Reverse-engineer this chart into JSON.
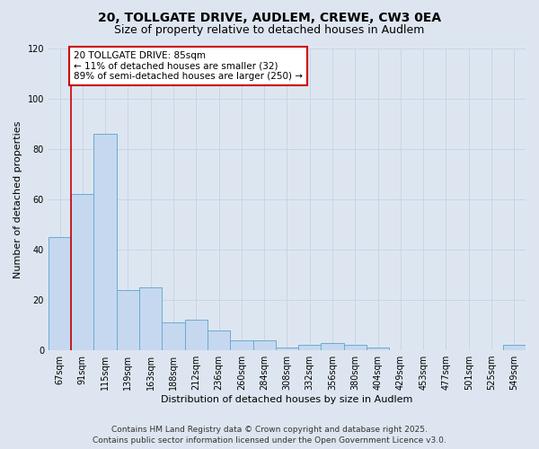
{
  "title_line1": "20, TOLLGATE DRIVE, AUDLEM, CREWE, CW3 0EA",
  "title_line2": "Size of property relative to detached houses in Audlem",
  "xlabel": "Distribution of detached houses by size in Audlem",
  "ylabel": "Number of detached properties",
  "categories": [
    "67sqm",
    "91sqm",
    "115sqm",
    "139sqm",
    "163sqm",
    "188sqm",
    "212sqm",
    "236sqm",
    "260sqm",
    "284sqm",
    "308sqm",
    "332sqm",
    "356sqm",
    "380sqm",
    "404sqm",
    "429sqm",
    "453sqm",
    "477sqm",
    "501sqm",
    "525sqm",
    "549sqm"
  ],
  "values": [
    45,
    62,
    86,
    24,
    25,
    11,
    12,
    8,
    4,
    4,
    1,
    2,
    3,
    2,
    1,
    0,
    0,
    0,
    0,
    0,
    2
  ],
  "bar_color": "#c5d8f0",
  "bar_edge_color": "#6aabd2",
  "ylim": [
    0,
    120
  ],
  "yticks": [
    0,
    20,
    40,
    60,
    80,
    100,
    120
  ],
  "vertical_line_color": "#cc0000",
  "annotation_title": "20 TOLLGATE DRIVE: 85sqm",
  "annotation_line2": "← 11% of detached houses are smaller (32)",
  "annotation_line3": "89% of semi-detached houses are larger (250) →",
  "annotation_box_facecolor": "#ffffff",
  "annotation_box_edgecolor": "#cc0000",
  "grid_color": "#c8d4e8",
  "background_color": "#dde6f0",
  "footer_line1": "Contains HM Land Registry data © Crown copyright and database right 2025.",
  "footer_line2": "Contains public sector information licensed under the Open Government Licence v3.0.",
  "title_fontsize": 10,
  "subtitle_fontsize": 9,
  "axis_label_fontsize": 8,
  "tick_fontsize": 7,
  "annotation_fontsize": 7.5,
  "footer_fontsize": 6.5
}
